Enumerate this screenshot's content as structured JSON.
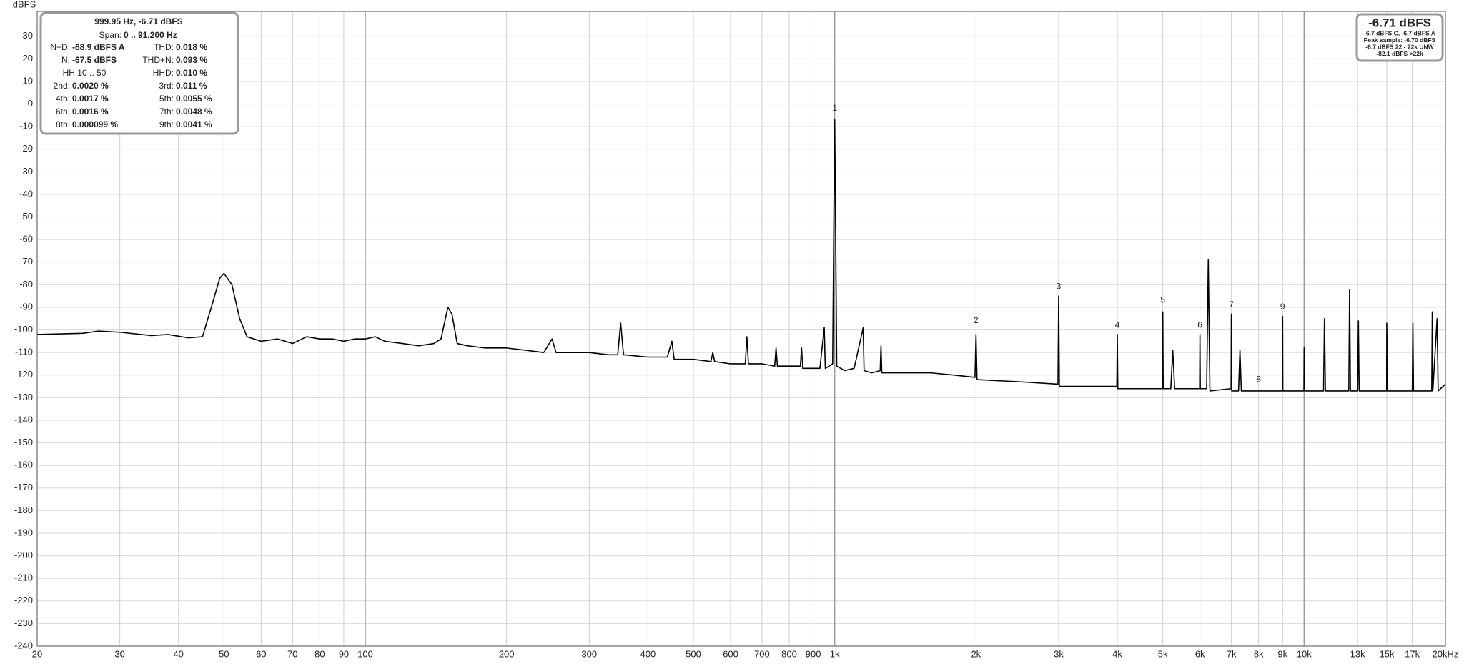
{
  "chart_data": {
    "type": "line",
    "y_label": "dBFS",
    "xscale": "log",
    "grid": true,
    "xlim": [
      20,
      20000
    ],
    "ylim": [
      -240,
      41
    ],
    "yticks": [
      30,
      20,
      10,
      0,
      -10,
      -20,
      -30,
      -40,
      -50,
      -60,
      -70,
      -80,
      -90,
      -100,
      -110,
      -120,
      -130,
      -140,
      -150,
      -160,
      -170,
      -180,
      -190,
      -200,
      -210,
      -220,
      -230,
      -240
    ],
    "xticks": [
      20,
      30,
      40,
      50,
      60,
      70,
      80,
      90,
      100,
      200,
      300,
      400,
      500,
      600,
      700,
      800,
      900,
      {
        "value": 1000,
        "label": "1k"
      },
      {
        "value": 2000,
        "label": "2k"
      },
      {
        "value": 3000,
        "label": "3k"
      },
      {
        "value": 4000,
        "label": "4k"
      },
      {
        "value": 5000,
        "label": "5k"
      },
      {
        "value": 6000,
        "label": "6k"
      },
      {
        "value": 7000,
        "label": "7k"
      },
      {
        "value": 8000,
        "label": "8k"
      },
      {
        "value": 9000,
        "label": "9k"
      },
      {
        "value": 10000,
        "label": "10k"
      },
      {
        "value": 13000,
        "label": "13k"
      },
      {
        "value": 15000,
        "label": "15k"
      },
      {
        "value": 17000,
        "label": "17k"
      },
      {
        "value": 20000,
        "label": "20kHz"
      }
    ],
    "series": [
      {
        "color": "#000000",
        "x": [
          20,
          25,
          27,
          30,
          35,
          38,
          42,
          45,
          47,
          49,
          50,
          52,
          54,
          56,
          60,
          65,
          70,
          75,
          80,
          85,
          90,
          95,
          100,
          105,
          110,
          120,
          130,
          140,
          145,
          150,
          153,
          157,
          165,
          180,
          200,
          220,
          240,
          250,
          255,
          280,
          300,
          330,
          345,
          350,
          355,
          400,
          440,
          450,
          455,
          500,
          545,
          550,
          555,
          600,
          645,
          650,
          655,
          700,
          745,
          750,
          755,
          800,
          845,
          850,
          855,
          930,
          950,
          955,
          990,
          995,
          1000,
          1005,
          1010,
          1050,
          1100,
          1150,
          1155,
          1200,
          1250,
          1255,
          1260,
          1400,
          1600,
          1800,
          1990,
          2000,
          2010,
          2500,
          2990,
          3000,
          3010,
          3500,
          3990,
          4000,
          4010,
          4500,
          4990,
          5000,
          5010,
          5200,
          5250,
          5300,
          5990,
          6000,
          6010,
          6200,
          6250,
          6300,
          6990,
          7000,
          7010,
          7250,
          7300,
          7350,
          8000,
          8990,
          9000,
          9010,
          9990,
          10000,
          10010,
          11000,
          11050,
          11100,
          12450,
          12500,
          12550,
          13000,
          13050,
          13100,
          14990,
          15000,
          15050,
          17000,
          17050,
          17100,
          18700,
          18750,
          18800,
          19200,
          19300,
          20000
        ],
        "values": [
          -102,
          -101.5,
          -100.5,
          -101,
          -102.5,
          -102,
          -103.5,
          -103,
          -90,
          -77,
          -75,
          -80,
          -95,
          -103,
          -105,
          -104,
          -106,
          -103,
          -104,
          -104,
          -105,
          -104,
          -104,
          -103,
          -105,
          -106,
          -107,
          -106,
          -104,
          -90,
          -93,
          -106,
          -107,
          -108,
          -108,
          -109,
          -110,
          -104,
          -110,
          -110,
          -110,
          -111,
          -111,
          -97,
          -111,
          -112,
          -112,
          -105,
          -113,
          -113,
          -114,
          -110,
          -114,
          -115,
          -115,
          -103,
          -115,
          -115,
          -116,
          -108,
          -116,
          -116,
          -116,
          -108,
          -117,
          -117,
          -99,
          -117,
          -115,
          -60,
          -7,
          -60,
          -116,
          -118,
          -117,
          -99,
          -118,
          -119,
          -118,
          -107,
          -119,
          -119,
          -119,
          -120,
          -121,
          -102,
          -122,
          -123,
          -124,
          -85,
          -125,
          -125,
          -125,
          -102,
          -126,
          -126,
          -126,
          -92,
          -126,
          -126,
          -109,
          -126,
          -126,
          -102,
          -126,
          -126,
          -69,
          -127,
          -126,
          -93,
          -127,
          -127,
          -109,
          -127,
          -127,
          -127,
          -94,
          -127,
          -127,
          -108,
          -127,
          -127,
          -95,
          -127,
          -127,
          -82,
          -127,
          -127,
          -96,
          -127,
          -127,
          -97,
          -127,
          -127,
          -97,
          -127,
          -127,
          -92,
          -127,
          -95,
          -127,
          -124
        ]
      }
    ],
    "annotations": [
      {
        "text": "1",
        "x": 1000,
        "y": -2
      },
      {
        "text": "2",
        "x": 2000,
        "y": -96
      },
      {
        "text": "3",
        "x": 3000,
        "y": -81
      },
      {
        "text": "4",
        "x": 4000,
        "y": -98
      },
      {
        "text": "5",
        "x": 5000,
        "y": -87
      },
      {
        "text": "6",
        "x": 6000,
        "y": -98
      },
      {
        "text": "7",
        "x": 7000,
        "y": -89
      },
      {
        "text": "8",
        "x": 8000,
        "y": -122
      },
      {
        "text": "9",
        "x": 9000,
        "y": -90
      }
    ],
    "info_box": {
      "title": "999.95 Hz, -6.71 dBFS",
      "span_label": "Span:",
      "span_value": "0 .. 91,200 Hz",
      "rows": [
        [
          {
            "label": "N+D:",
            "value": "-68.9 dBFS A"
          },
          {
            "label": "THD:",
            "value": "0.018 %"
          }
        ],
        [
          {
            "label": "N:",
            "value": "-67.5 dBFS"
          },
          {
            "label": "THD+N:",
            "value": "0.093 %"
          }
        ],
        [
          {
            "label": "HH 10 .. 50"
          },
          {
            "label": "HHD:",
            "value": "0.010 %"
          }
        ],
        [
          {
            "label": "2nd:",
            "value": "0.0020 %"
          },
          {
            "label": "3rd:",
            "value": "0.011 %"
          }
        ],
        [
          {
            "label": "4th:",
            "value": "0.0017 %"
          },
          {
            "label": "5th:",
            "value": "0.0055 %"
          }
        ],
        [
          {
            "label": "6th:",
            "value": "0.0016 %"
          },
          {
            "label": "7th:",
            "value": "0.0048 %"
          }
        ],
        [
          {
            "label": "8th:",
            "value": "0.000099 %"
          },
          {
            "label": "9th:",
            "value": "0.0041 %"
          }
        ]
      ]
    },
    "level_box": {
      "title": "-6.71 dBFS",
      "lines": [
        "-6.7 dBFS C, -6.7 dBFS A",
        "Peak sample: -6.70 dBFS",
        "-6.7 dBFS 22 - 22k UNW",
        "-82.1 dBFS >22k"
      ]
    }
  }
}
